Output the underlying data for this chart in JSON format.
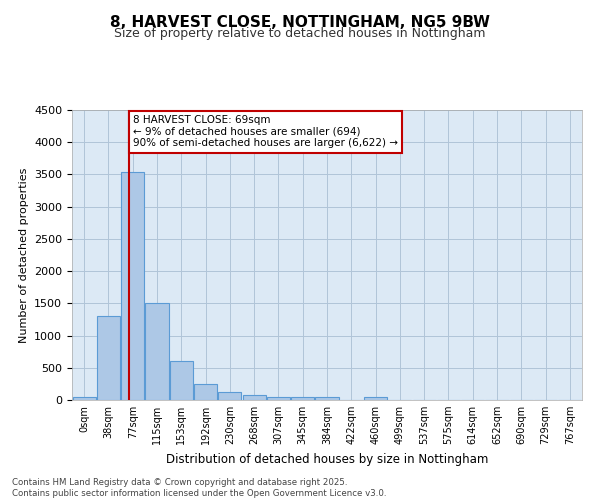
{
  "title1": "8, HARVEST CLOSE, NOTTINGHAM, NG5 9BW",
  "title2": "Size of property relative to detached houses in Nottingham",
  "xlabel": "Distribution of detached houses by size in Nottingham",
  "ylabel": "Number of detached properties",
  "bin_labels": [
    "0sqm",
    "38sqm",
    "77sqm",
    "115sqm",
    "153sqm",
    "192sqm",
    "230sqm",
    "268sqm",
    "307sqm",
    "345sqm",
    "384sqm",
    "422sqm",
    "460sqm",
    "499sqm",
    "537sqm",
    "575sqm",
    "614sqm",
    "652sqm",
    "690sqm",
    "729sqm",
    "767sqm"
  ],
  "bar_values": [
    50,
    1300,
    3540,
    1500,
    600,
    250,
    120,
    75,
    50,
    50,
    50,
    0,
    50,
    0,
    0,
    0,
    0,
    0,
    0,
    0,
    0
  ],
  "bar_color": "#adc8e6",
  "bar_edge_color": "#5b9bd5",
  "vline_x": 1.85,
  "vline_color": "#c00000",
  "annotation_text": "8 HARVEST CLOSE: 69sqm\n← 9% of detached houses are smaller (694)\n90% of semi-detached houses are larger (6,622) →",
  "annotation_box_color": "#ffffff",
  "annotation_box_edge": "#c00000",
  "background_color": "#dce9f5",
  "footer_text": "Contains HM Land Registry data © Crown copyright and database right 2025.\nContains public sector information licensed under the Open Government Licence v3.0.",
  "ylim": [
    0,
    4500
  ],
  "yticks": [
    0,
    500,
    1000,
    1500,
    2000,
    2500,
    3000,
    3500,
    4000,
    4500
  ]
}
